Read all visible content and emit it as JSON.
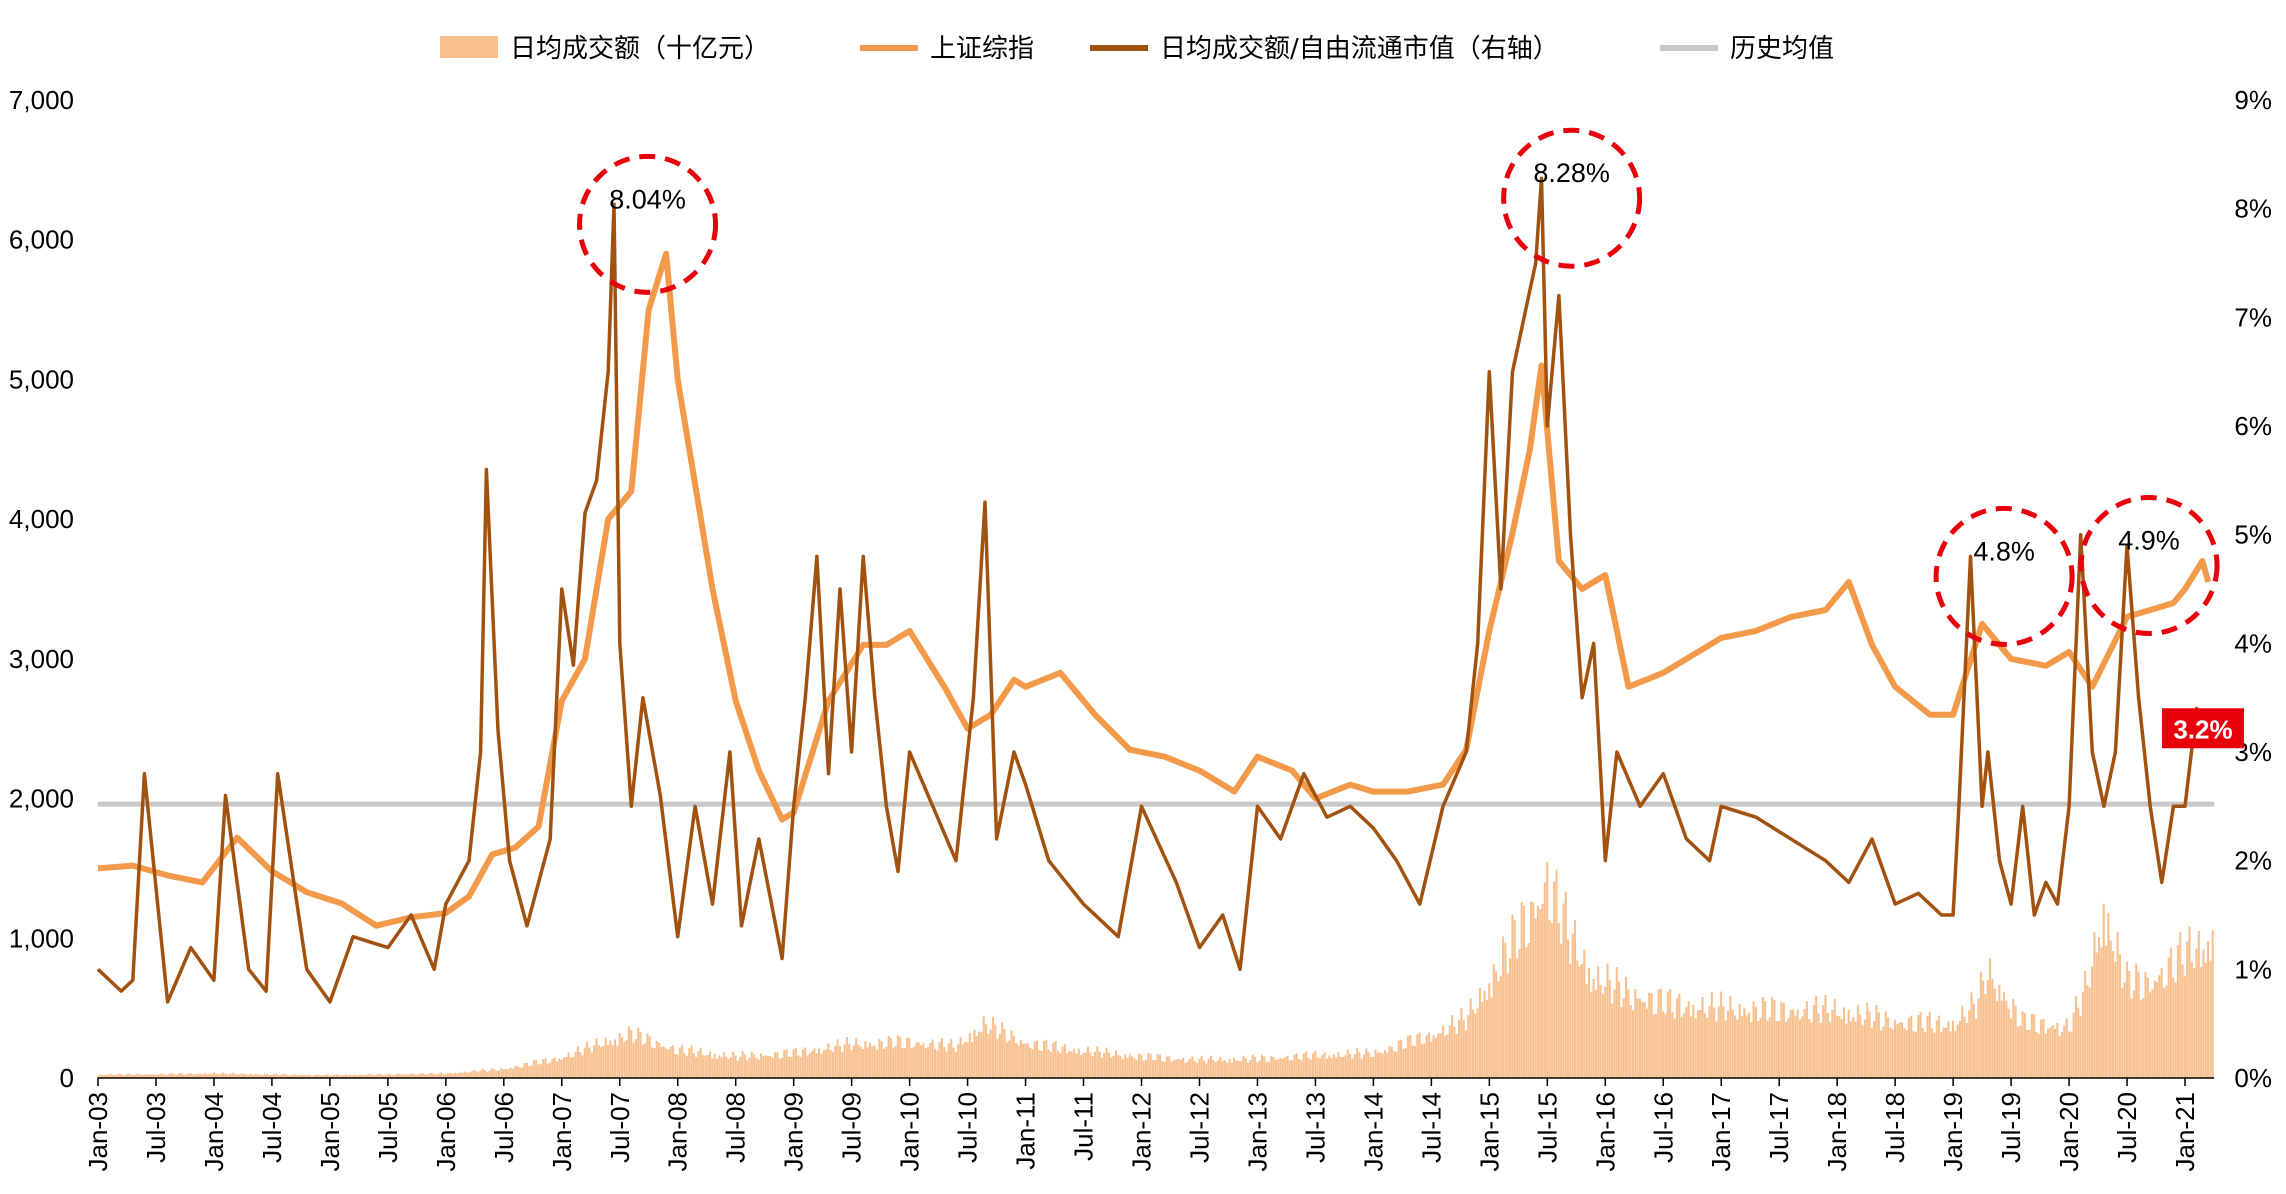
{
  "chart_data": {
    "type": "line",
    "title": "",
    "legend": {
      "placement": "top",
      "items": [
        {
          "label": "日均成交额（十亿元）",
          "kind": "bar",
          "color": "#f7c08e"
        },
        {
          "label": "上证综指",
          "kind": "line",
          "color": "#f29a4a"
        },
        {
          "label": "日均成交额/自由流通市值（右轴）",
          "kind": "line",
          "color": "#a1520f"
        },
        {
          "label": "历史均值",
          "kind": "line",
          "color": "#c8c8c8"
        }
      ]
    },
    "x_ticks": [
      "Jan-03",
      "Jul-03",
      "Jan-04",
      "Jul-04",
      "Jan-05",
      "Jul-05",
      "Jan-06",
      "Jul-06",
      "Jan-07",
      "Jul-07",
      "Jan-08",
      "Jul-08",
      "Jan-09",
      "Jul-09",
      "Jan-10",
      "Jul-10",
      "Jan-11",
      "Jul-11",
      "Jan-12",
      "Jul-12",
      "Jan-13",
      "Jul-13",
      "Jan-14",
      "Jul-14",
      "Jan-15",
      "Jul-15",
      "Jan-16",
      "Jul-16",
      "Jan-17",
      "Jul-17",
      "Jan-18",
      "Jul-18",
      "Jan-19",
      "Jul-19",
      "Jan-20",
      "Jul-20",
      "Jan-21"
    ],
    "y_left": {
      "ticks": [
        "0",
        "1,000",
        "2,000",
        "3,000",
        "4,000",
        "5,000",
        "6,000",
        "7,000"
      ],
      "ylim": [
        0,
        7000
      ]
    },
    "y_right": {
      "ticks": [
        "0%",
        "1%",
        "2%",
        "3%",
        "4%",
        "5%",
        "6%",
        "7%",
        "8%",
        "9%"
      ],
      "ylim": [
        0,
        9
      ]
    },
    "x_range": [
      2003.0,
      2021.25
    ],
    "grid": false,
    "historical_mean": {
      "name": "历史均值",
      "value": 1960,
      "axis": "left"
    },
    "series": [
      {
        "name": "上证综指",
        "axis": "left",
        "color": "#f29a4a",
        "x": [
          2003.0,
          2003.3,
          2003.6,
          2003.9,
          2004.2,
          2004.5,
          2004.8,
          2005.1,
          2005.4,
          2005.7,
          2006.0,
          2006.2,
          2006.4,
          2006.6,
          2006.8,
          2007.0,
          2007.2,
          2007.4,
          2007.6,
          2007.75,
          2007.9,
          2008.0,
          2008.1,
          2008.3,
          2008.5,
          2008.7,
          2008.9,
          2009.0,
          2009.3,
          2009.6,
          2009.8,
          2010.0,
          2010.3,
          2010.5,
          2010.7,
          2010.9,
          2011.0,
          2011.3,
          2011.6,
          2011.9,
          2012.2,
          2012.5,
          2012.8,
          2013.0,
          2013.3,
          2013.5,
          2013.8,
          2014.0,
          2014.3,
          2014.6,
          2014.8,
          2015.0,
          2015.2,
          2015.35,
          2015.45,
          2015.6,
          2015.8,
          2016.0,
          2016.2,
          2016.5,
          2016.8,
          2017.0,
          2017.3,
          2017.6,
          2017.9,
          2018.1,
          2018.3,
          2018.5,
          2018.8,
          2019.0,
          2019.25,
          2019.5,
          2019.8,
          2020.0,
          2020.2,
          2020.5,
          2020.7,
          2020.9,
          2021.0,
          2021.15,
          2021.2
        ],
        "y": [
          1500,
          1520,
          1450,
          1400,
          1720,
          1480,
          1330,
          1250,
          1090,
          1150,
          1180,
          1300,
          1600,
          1650,
          1800,
          2700,
          3000,
          4000,
          4200,
          5500,
          5900,
          5000,
          4500,
          3500,
          2700,
          2200,
          1850,
          1900,
          2700,
          3100,
          3100,
          3200,
          2800,
          2500,
          2600,
          2850,
          2800,
          2900,
          2600,
          2350,
          2300,
          2200,
          2050,
          2300,
          2200,
          2000,
          2100,
          2050,
          2050,
          2100,
          2350,
          3200,
          3900,
          4500,
          5100,
          3700,
          3500,
          3600,
          2800,
          2900,
          3050,
          3150,
          3200,
          3300,
          3350,
          3550,
          3100,
          2800,
          2600,
          2600,
          3250,
          3000,
          2950,
          3050,
          2800,
          3300,
          3350,
          3400,
          3500,
          3700,
          3550
        ]
      },
      {
        "name": "日均成交额/自由流通市值（右轴）",
        "axis": "right",
        "color": "#a1520f",
        "x": [
          2003.0,
          2003.2,
          2003.3,
          2003.4,
          2003.6,
          2003.8,
          2004.0,
          2004.1,
          2004.3,
          2004.45,
          2004.55,
          2004.8,
          2005.0,
          2005.2,
          2005.5,
          2005.7,
          2005.9,
          2006.0,
          2006.2,
          2006.3,
          2006.35,
          2006.45,
          2006.55,
          2006.7,
          2006.8,
          2006.9,
          2007.0,
          2007.1,
          2007.2,
          2007.3,
          2007.4,
          2007.45,
          2007.5,
          2007.6,
          2007.7,
          2007.85,
          2008.0,
          2008.15,
          2008.3,
          2008.45,
          2008.55,
          2008.7,
          2008.9,
          2009.0,
          2009.1,
          2009.2,
          2009.3,
          2009.4,
          2009.5,
          2009.6,
          2009.7,
          2009.8,
          2009.9,
          2010.0,
          2010.2,
          2010.4,
          2010.55,
          2010.65,
          2010.75,
          2010.9,
          2011.0,
          2011.2,
          2011.5,
          2011.8,
          2012.0,
          2012.3,
          2012.5,
          2012.7,
          2012.85,
          2013.0,
          2013.2,
          2013.4,
          2013.6,
          2013.8,
          2014.0,
          2014.2,
          2014.4,
          2014.6,
          2014.8,
          2014.9,
          2015.0,
          2015.1,
          2015.2,
          2015.3,
          2015.4,
          2015.45,
          2015.5,
          2015.6,
          2015.7,
          2015.8,
          2015.9,
          2016.0,
          2016.1,
          2016.3,
          2016.5,
          2016.7,
          2016.9,
          2017.0,
          2017.3,
          2017.6,
          2017.9,
          2018.1,
          2018.3,
          2018.5,
          2018.7,
          2018.9,
          2019.0,
          2019.05,
          2019.15,
          2019.25,
          2019.3,
          2019.4,
          2019.5,
          2019.6,
          2019.7,
          2019.8,
          2019.9,
          2020.0,
          2020.1,
          2020.2,
          2020.3,
          2020.4,
          2020.5,
          2020.6,
          2020.7,
          2020.8,
          2020.9,
          2021.0,
          2021.1,
          2021.2
        ],
        "y": [
          1.0,
          0.8,
          0.9,
          2.8,
          0.7,
          1.2,
          0.9,
          2.6,
          1.0,
          0.8,
          2.8,
          1.0,
          0.7,
          1.3,
          1.2,
          1.5,
          1.0,
          1.6,
          2.0,
          3.0,
          5.6,
          3.2,
          2.0,
          1.4,
          1.8,
          2.2,
          4.5,
          3.8,
          5.2,
          5.5,
          6.5,
          8.04,
          4.0,
          2.5,
          3.5,
          2.6,
          1.3,
          2.5,
          1.6,
          3.0,
          1.4,
          2.2,
          1.1,
          2.5,
          3.5,
          4.8,
          2.8,
          4.5,
          3.0,
          4.8,
          3.5,
          2.5,
          1.9,
          3.0,
          2.5,
          2.0,
          3.5,
          5.3,
          2.2,
          3.0,
          2.7,
          2.0,
          1.6,
          1.3,
          2.5,
          1.8,
          1.2,
          1.5,
          1.0,
          2.5,
          2.2,
          2.8,
          2.4,
          2.5,
          2.3,
          2.0,
          1.6,
          2.5,
          3.0,
          4.0,
          6.5,
          4.5,
          6.5,
          7.0,
          7.5,
          8.28,
          6.0,
          7.2,
          5.0,
          3.5,
          4.0,
          2.0,
          3.0,
          2.5,
          2.8,
          2.2,
          2.0,
          2.5,
          2.4,
          2.2,
          2.0,
          1.8,
          2.2,
          1.6,
          1.7,
          1.5,
          1.5,
          2.5,
          4.8,
          2.5,
          3.0,
          2.0,
          1.6,
          2.5,
          1.5,
          1.8,
          1.6,
          2.5,
          5.0,
          3.0,
          2.5,
          3.0,
          4.9,
          3.5,
          2.5,
          1.8,
          2.5,
          2.5,
          3.4,
          3.2
        ]
      },
      {
        "name": "日均成交额（十亿元）",
        "axis": "left",
        "kind": "bar",
        "color": "#f7c08e",
        "x": [
          2003.0,
          2004.0,
          2005.0,
          2006.0,
          2006.5,
          2007.0,
          2007.4,
          2007.6,
          2008.0,
          2008.5,
          2009.0,
          2009.5,
          2010.0,
          2010.4,
          2010.65,
          2011.0,
          2011.5,
          2012.0,
          2012.5,
          2013.0,
          2013.5,
          2014.0,
          2014.5,
          2014.8,
          2015.0,
          2015.2,
          2015.4,
          2015.5,
          2015.7,
          2015.9,
          2016.2,
          2016.6,
          2017.0,
          2017.5,
          2018.0,
          2018.5,
          2019.0,
          2019.2,
          2019.3,
          2019.6,
          2020.0,
          2020.15,
          2020.3,
          2020.5,
          2020.7,
          2021.0,
          2021.2
        ],
        "y": [
          30,
          40,
          25,
          40,
          80,
          180,
          330,
          390,
          250,
          190,
          220,
          300,
          320,
          280,
          480,
          310,
          240,
          190,
          160,
          170,
          200,
          220,
          380,
          520,
          850,
          1200,
          1550,
          1750,
          1250,
          900,
          750,
          650,
          620,
          600,
          600,
          500,
          480,
          650,
          950,
          500,
          450,
          800,
          1500,
          850,
          850,
          1100,
          1200
        ]
      }
    ],
    "annotations": [
      {
        "label": "8.04%",
        "x": 2007.55,
        "y": 8.04
      },
      {
        "label": "8.28%",
        "x": 2015.52,
        "y": 8.28
      },
      {
        "label": "4.8%",
        "x": 2019.25,
        "y": 4.8
      },
      {
        "label": "4.9%",
        "x": 2020.5,
        "y": 4.9
      }
    ],
    "callout": {
      "label": "3.2%",
      "value": 3.2,
      "axis": "right",
      "color": "#e8000b"
    }
  }
}
